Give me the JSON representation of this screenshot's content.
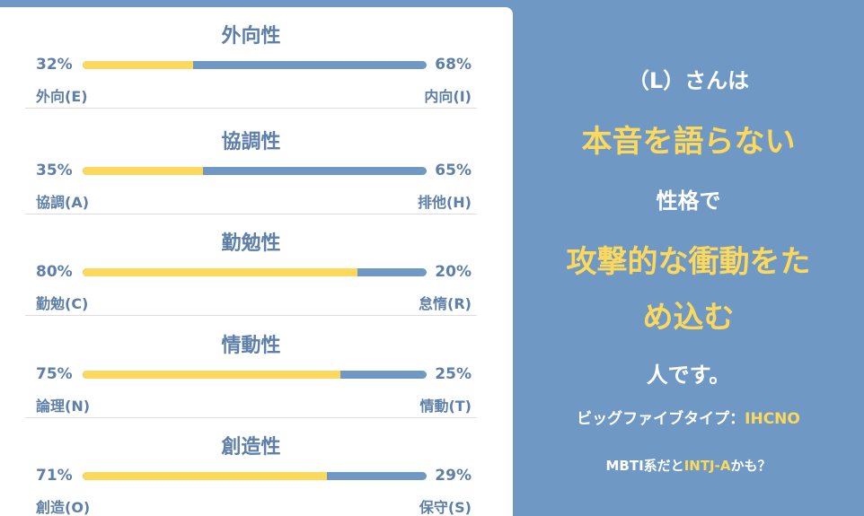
{
  "colors": {
    "background": "#6f98c4",
    "panel": "#ffffff",
    "text_blue": "#5d7fa8",
    "accent_yellow": "#fcd95c",
    "bar_blue": "#6f98c4"
  },
  "traits": [
    {
      "title": "外向性",
      "left_pct": "32%",
      "right_pct": "68%",
      "left_value": 32,
      "left_label": "外向(E)",
      "right_label": "内向(I)"
    },
    {
      "title": "協調性",
      "left_pct": "35%",
      "right_pct": "65%",
      "left_value": 35,
      "left_label": "協調(A)",
      "right_label": "排他(H)"
    },
    {
      "title": "勤勉性",
      "left_pct": "80%",
      "right_pct": "20%",
      "left_value": 80,
      "left_label": "勤勉(C)",
      "right_label": "怠惰(R)"
    },
    {
      "title": "情動性",
      "left_pct": "75%",
      "right_pct": "25%",
      "left_value": 75,
      "left_label": "論理(N)",
      "right_label": "情動(T)"
    },
    {
      "title": "創造性",
      "left_pct": "71%",
      "right_pct": "29%",
      "left_value": 71,
      "left_label": "創造(O)",
      "right_label": "保守(S)"
    }
  ],
  "result": {
    "intro": "（L）さんは",
    "trait1": "本音を語らない",
    "connector": "性格で",
    "trait2_line1": "攻撃的な衝動をた",
    "trait2_line2": "め込む",
    "closing": "人です。",
    "big_five_prefix": "ビッグファイブタイプ：",
    "big_five_type": "IHCNO",
    "mbti_prefix": "MBTI系だと",
    "mbti_type": "INTJ-A",
    "mbti_suffix": "かも？"
  }
}
